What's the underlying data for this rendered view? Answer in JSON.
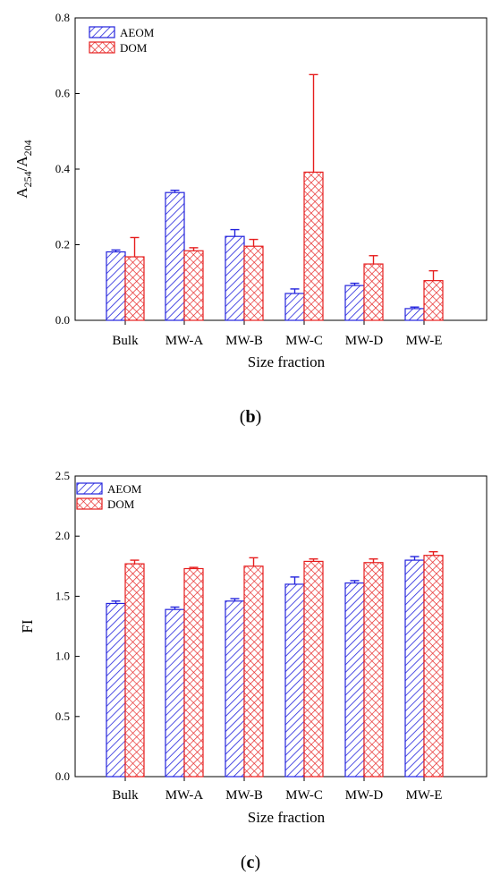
{
  "chart_data": [
    {
      "type": "bar",
      "panel_label": {
        "open": "(",
        "letter": "b",
        "close": ")"
      },
      "categories": [
        "Bulk",
        "MW-A",
        "MW-B",
        "MW-C",
        "MW-D",
        "MW-E"
      ],
      "series": [
        {
          "name": "AEOM",
          "values": [
            0.181,
            0.338,
            0.222,
            0.071,
            0.092,
            0.031
          ],
          "errors": [
            0.005,
            0.006,
            0.018,
            0.012,
            0.006,
            0.004
          ]
        },
        {
          "name": "DOM",
          "values": [
            0.168,
            0.184,
            0.196,
            0.392,
            0.149,
            0.105
          ],
          "errors": [
            0.051,
            0.008,
            0.018,
            0.258,
            0.022,
            0.026
          ]
        }
      ],
      "xlabel": "Size fraction",
      "ylabel": {
        "base": "A",
        "sub1": "254",
        "sep": "/A",
        "sub2": "204"
      },
      "ylim": [
        0,
        0.8
      ],
      "yticks": [
        "0.0",
        "0.2",
        "0.4",
        "0.6",
        "0.8"
      ],
      "legend_position": "top-left",
      "grid": false
    },
    {
      "type": "bar",
      "panel_label": {
        "open": "(",
        "letter": "c",
        "close": ")"
      },
      "categories": [
        "Bulk",
        "MW-A",
        "MW-B",
        "MW-C",
        "MW-D",
        "MW-E"
      ],
      "series": [
        {
          "name": "AEOM",
          "values": [
            1.44,
            1.39,
            1.46,
            1.6,
            1.61,
            1.8
          ],
          "errors": [
            0.02,
            0.02,
            0.02,
            0.06,
            0.02,
            0.03
          ]
        },
        {
          "name": "DOM",
          "values": [
            1.77,
            1.73,
            1.75,
            1.79,
            1.78,
            1.84
          ],
          "errors": [
            0.03,
            0.01,
            0.07,
            0.02,
            0.03,
            0.03
          ]
        }
      ],
      "xlabel": "Size fraction",
      "ylabel": {
        "base": "FI"
      },
      "ylim": [
        0,
        2.5
      ],
      "yticks": [
        "0.0",
        "0.5",
        "1.0",
        "1.5",
        "2.0",
        "2.5"
      ],
      "legend_position": "top-left",
      "grid": false
    }
  ],
  "colors": {
    "aeom": "#2323dd",
    "dom": "#e61e1e",
    "axis": "#000000"
  }
}
